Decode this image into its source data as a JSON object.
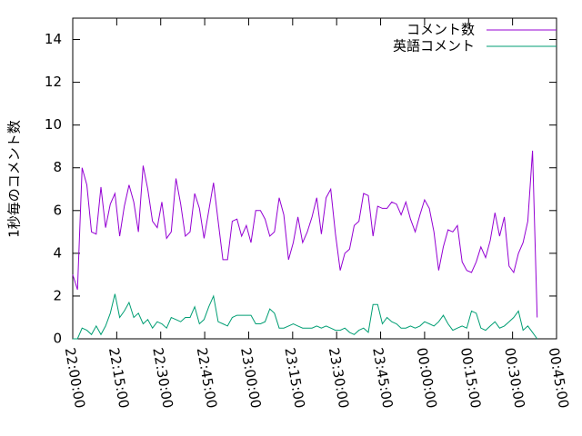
{
  "chart_data": {
    "type": "line",
    "ylabel": "1秒毎のコメント数",
    "x": [
      0,
      1.6,
      3.2,
      4.8,
      6.4,
      8,
      9.6,
      11.2,
      12.8,
      14.4,
      16,
      17.6,
      19.2,
      20.8,
      22.4,
      24,
      25.6,
      27.2,
      28.8,
      30.4,
      32,
      33.6,
      35.2,
      36.8,
      38.4,
      40,
      41.6,
      43.2,
      44.8,
      46.4,
      48,
      49.6,
      51.2,
      52.8,
      54.4,
      56,
      57.6,
      59.2,
      60.8,
      62.4,
      64,
      65.6,
      67.2,
      68.8,
      70.4,
      72,
      73.6,
      75.2,
      76.8,
      78.4,
      80,
      81.6,
      83.2,
      84.8,
      86.4,
      88,
      89.6,
      91.2,
      92.8,
      94.4,
      96,
      97.6,
      99.2,
      100.8,
      102.4,
      104,
      105.6,
      107.2,
      108.8,
      110.4,
      112,
      113.6,
      115.2,
      116.8,
      118.4,
      120,
      121.6,
      123.2,
      124.8,
      126.4,
      128,
      129.6,
      131.2,
      132.8,
      134.4,
      136,
      137.6,
      139.2,
      140.8,
      142.4,
      144,
      145.6,
      147.2,
      148.8,
      150.4,
      152,
      153.6,
      155.2,
      156.8,
      158.4
    ],
    "series": [
      {
        "name": "コメント数",
        "color": "#9400d3",
        "values": [
          3,
          2.3,
          8,
          7.2,
          5,
          4.9,
          7.1,
          5.2,
          6.3,
          6.8,
          4.8,
          6.2,
          7.2,
          6.4,
          5,
          8.1,
          7,
          5.5,
          5.2,
          6.4,
          4.7,
          5,
          7.5,
          6.3,
          4.8,
          5,
          6.8,
          6.1,
          4.7,
          6,
          7.3,
          5.5,
          3.7,
          3.7,
          5.5,
          5.6,
          4.8,
          5.3,
          4.5,
          6,
          6,
          5.6,
          4.8,
          5,
          6.6,
          5.8,
          3.7,
          4.5,
          5.7,
          4.5,
          5,
          5.7,
          6.6,
          4.9,
          6.6,
          7,
          4.9,
          3.2,
          4,
          4.2,
          5.3,
          5.5,
          6.8,
          6.7,
          4.8,
          6.2,
          6.1,
          6.1,
          6.4,
          6.3,
          5.8,
          6.4,
          5.6,
          5,
          5.8,
          6.5,
          6.1,
          5,
          3.2,
          4.3,
          5.1,
          5,
          5.3,
          3.6,
          3.2,
          3.1,
          3.6,
          4.3,
          3.8,
          4.6,
          5.9,
          4.8,
          5.7,
          3.4,
          3.1,
          4,
          4.5,
          5.5,
          8.8,
          1
        ]
      },
      {
        "name": "英語コメント",
        "color": "#009e73",
        "values": [
          0,
          0,
          0.5,
          0.4,
          0.2,
          0.6,
          0.2,
          0.6,
          1.2,
          2.1,
          1,
          1.3,
          1.7,
          1,
          1.2,
          0.7,
          0.9,
          0.5,
          0.8,
          0.7,
          0.5,
          1,
          0.9,
          0.8,
          1,
          1,
          1.5,
          0.7,
          0.9,
          1.5,
          2,
          0.8,
          0.7,
          0.6,
          1,
          1.1,
          1.1,
          1.1,
          1.1,
          0.7,
          0.7,
          0.8,
          1.4,
          1.2,
          0.5,
          0.5,
          0.6,
          0.7,
          0.6,
          0.5,
          0.5,
          0.5,
          0.6,
          0.5,
          0.6,
          0.5,
          0.4,
          0.4,
          0.5,
          0.3,
          0.2,
          0.4,
          0.5,
          0.3,
          1.6,
          1.6,
          0.7,
          1,
          0.8,
          0.7,
          0.5,
          0.5,
          0.6,
          0.5,
          0.6,
          0.8,
          0.7,
          0.6,
          0.8,
          1.1,
          0.7,
          0.4,
          0.5,
          0.6,
          0.5,
          1.3,
          1.2,
          0.5,
          0.4,
          0.6,
          0.8,
          0.5,
          0.6,
          0.8,
          1,
          1.3,
          0.4,
          0.6,
          0.3,
          0
        ]
      }
    ],
    "xlim": [
      0,
      165
    ],
    "xticks": [
      {
        "value": 0,
        "label": "22:00:00"
      },
      {
        "value": 15,
        "label": "22:15:00"
      },
      {
        "value": 30,
        "label": "22:30:00"
      },
      {
        "value": 45,
        "label": "22:45:00"
      },
      {
        "value": 60,
        "label": "23:00:00"
      },
      {
        "value": 75,
        "label": "23:15:00"
      },
      {
        "value": 90,
        "label": "23:30:00"
      },
      {
        "value": 105,
        "label": "23:45:00"
      },
      {
        "value": 120,
        "label": "00:00:00"
      },
      {
        "value": 135,
        "label": "00:15:00"
      },
      {
        "value": 150,
        "label": "00:30:00"
      },
      {
        "value": 165,
        "label": "00:45:00"
      }
    ],
    "ylim": [
      0,
      15
    ],
    "yticks": [
      0,
      2,
      4,
      6,
      8,
      10,
      12,
      14
    ],
    "legend": "top-right"
  }
}
